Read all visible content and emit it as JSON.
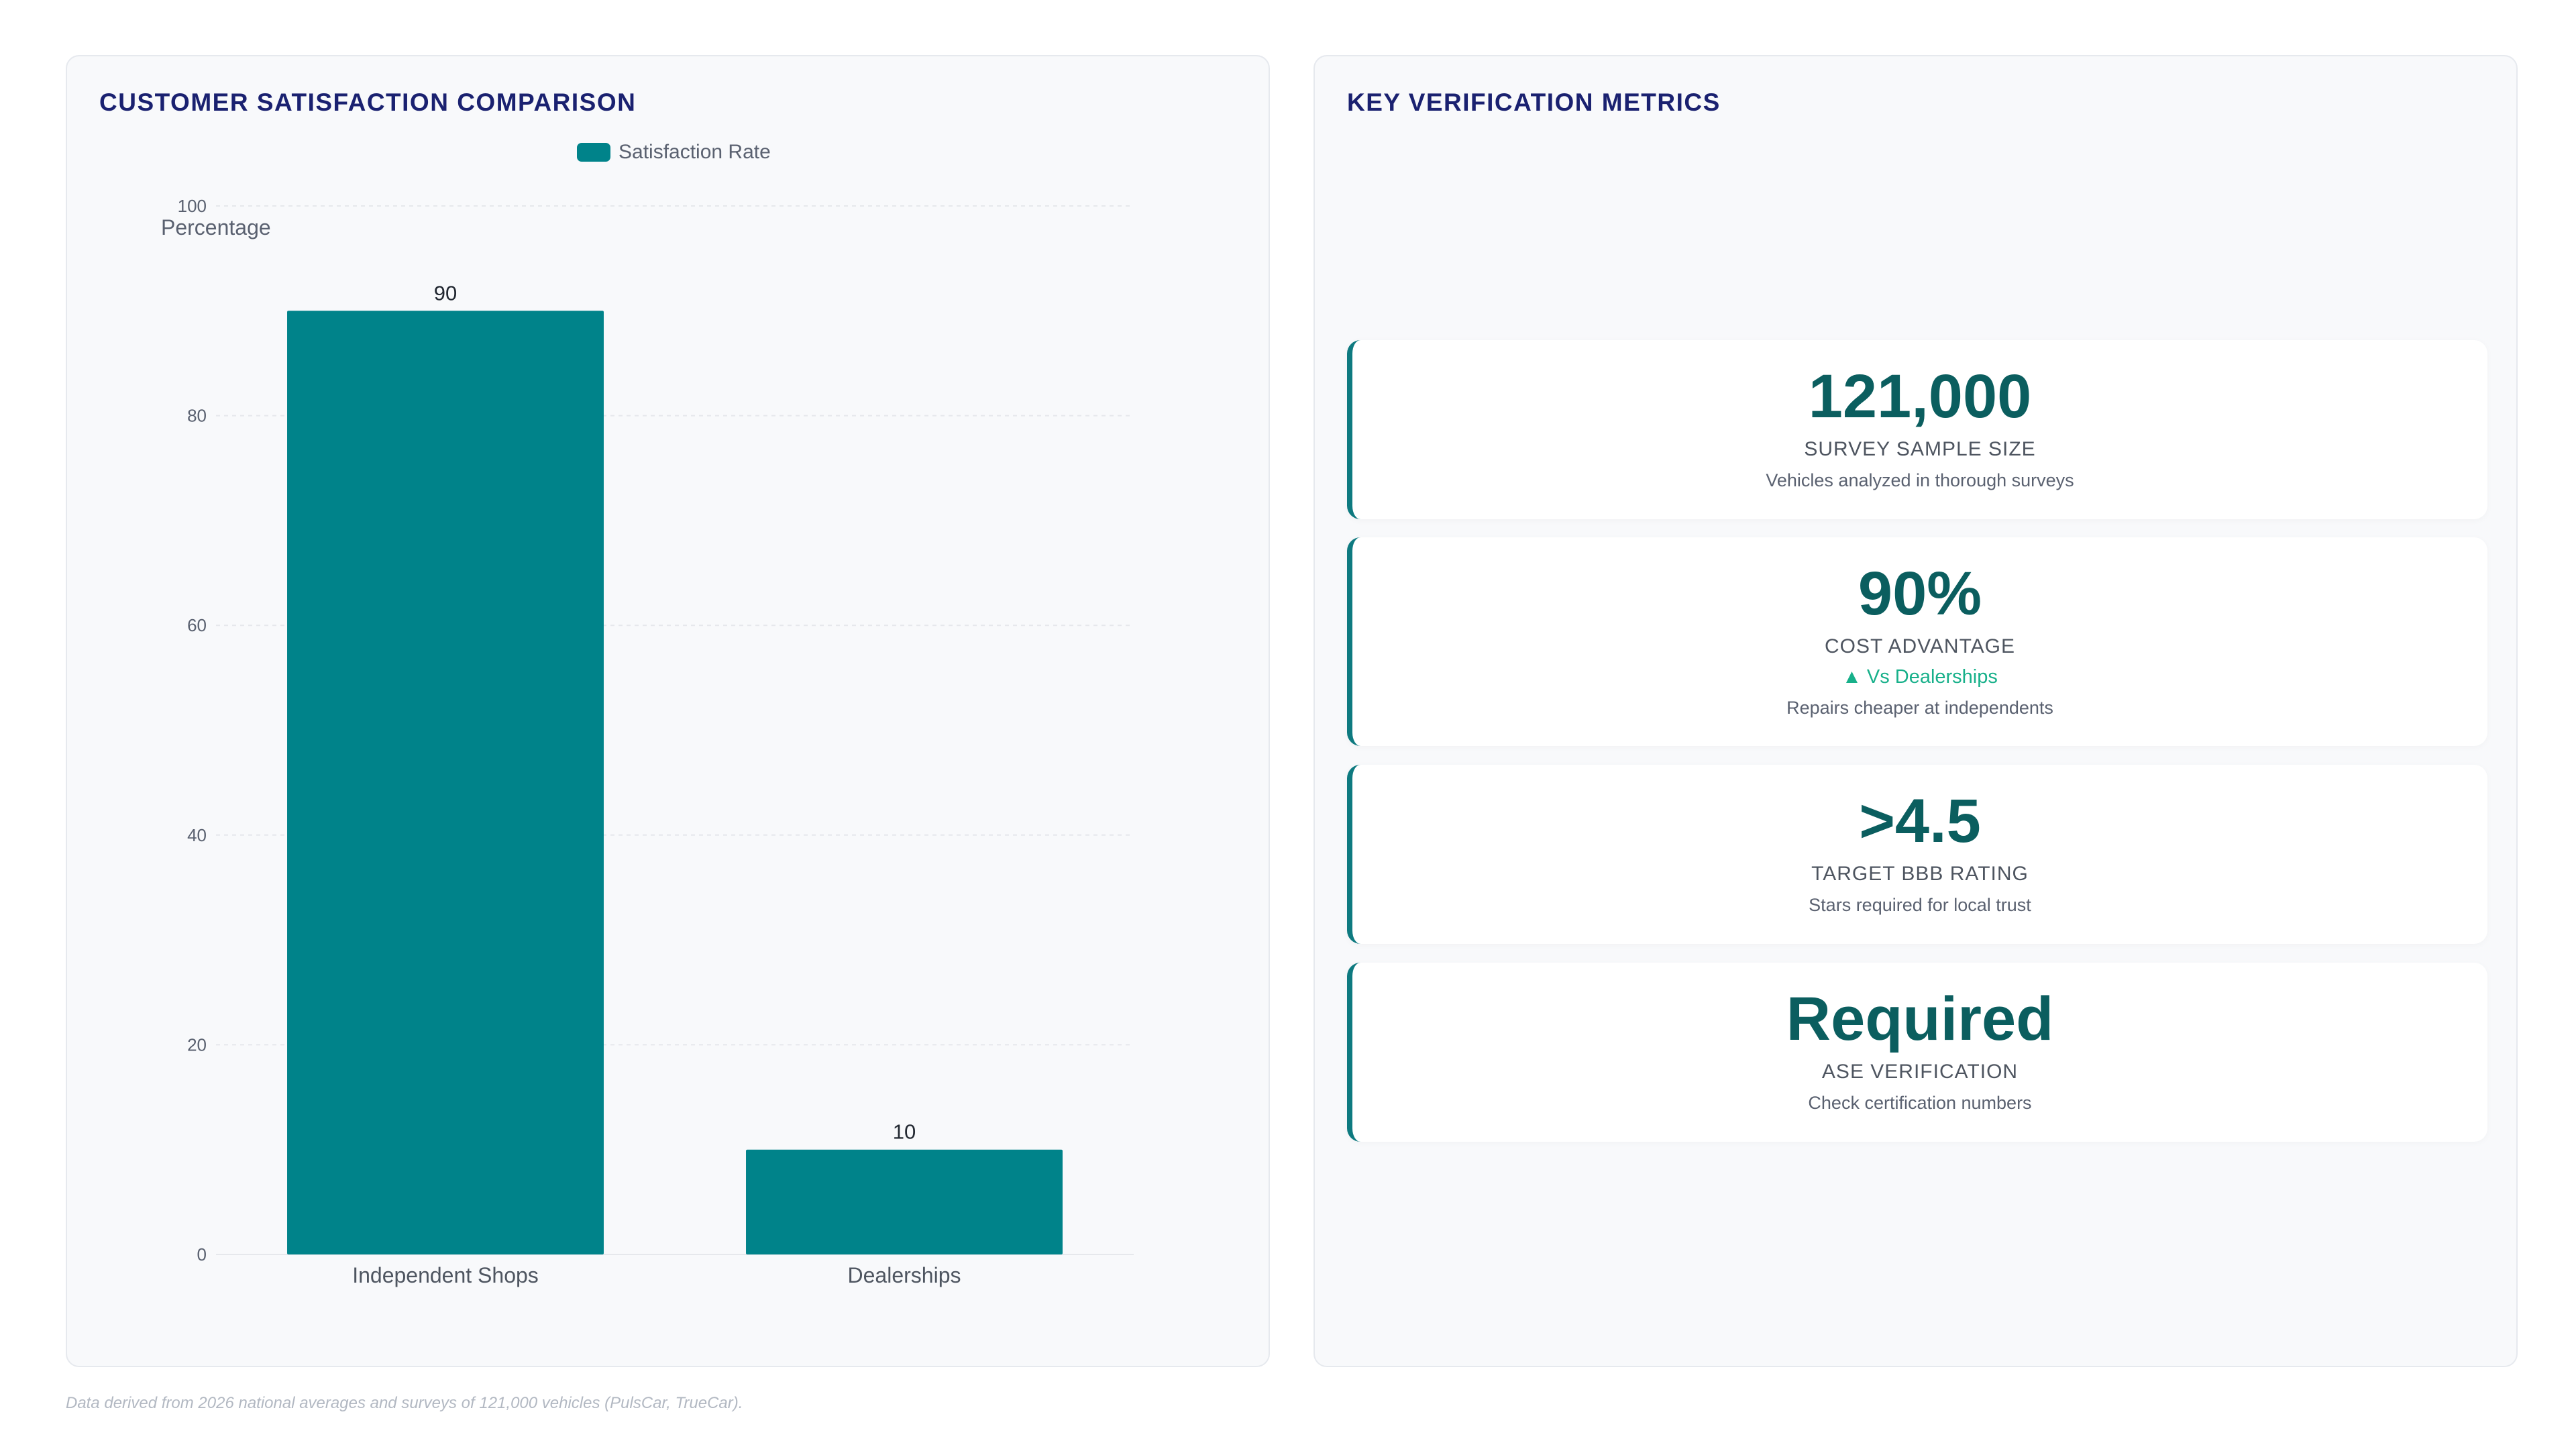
{
  "left_panel": {
    "title": "CUSTOMER SATISFACTION COMPARISON"
  },
  "chart_data": {
    "type": "bar",
    "categories": [
      "Independent Shops",
      "Dealerships"
    ],
    "series": [
      {
        "name": "Satisfaction Rate",
        "values": [
          90,
          10
        ]
      }
    ],
    "xlabel": "",
    "ylabel": "Percentage",
    "ylim": [
      0,
      100
    ],
    "yticks": [
      0,
      20,
      40,
      60,
      80,
      100
    ],
    "grid": true,
    "legend": "top",
    "data_labels": true,
    "bar_color": "#00838a"
  },
  "right_panel": {
    "title": "KEY VERIFICATION METRICS",
    "metrics": [
      {
        "value": "121,000",
        "label": "SURVEY SAMPLE SIZE",
        "trend": "",
        "desc": "Vehicles analyzed in thorough surveys"
      },
      {
        "value": "90%",
        "label": "COST ADVANTAGE",
        "trend": "▲ Vs Dealerships",
        "desc": "Repairs cheaper at independents"
      },
      {
        "value": ">4.5",
        "label": "TARGET BBB RATING",
        "trend": "",
        "desc": "Stars required for local trust"
      },
      {
        "value": "Required",
        "label": "ASE VERIFICATION",
        "trend": "",
        "desc": "Check certification numbers"
      }
    ]
  },
  "footer": {
    "note": "Data derived from 2026 national averages and surveys of 121,000 vehicles (PulsCar, TrueCar)."
  },
  "colors": {
    "accent": "#0e7a80",
    "value": "#0b5e5f",
    "title": "#1a2170",
    "trend_up": "#17b08a"
  }
}
